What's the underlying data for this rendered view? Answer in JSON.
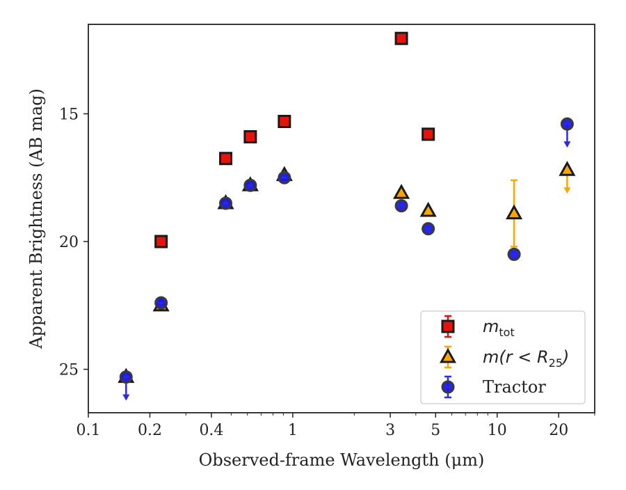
{
  "chart_data": {
    "type": "scatter",
    "xlabel": "Observed-frame Wavelength (μm)",
    "ylabel": "Apparent Brightness (AB mag)",
    "xscale": "log",
    "xlim": [
      0.1,
      30
    ],
    "ylim": [
      26.7,
      11.5
    ],
    "y_inverted": true,
    "xticks": [
      0.1,
      0.2,
      0.4,
      1,
      3,
      5,
      10,
      20
    ],
    "xtick_labels": [
      "0.1",
      "0.2",
      "0.4",
      "1",
      "3",
      "5",
      "10",
      "20"
    ],
    "yticks": [
      15,
      20,
      25
    ],
    "ytick_labels": [
      "15",
      "20",
      "25"
    ],
    "grid": false,
    "legend_placement": "lower-right",
    "legend": [
      {
        "label_main": "m",
        "label_sub": "tot",
        "label_rest": ""
      },
      {
        "label_main": "m(r < R",
        "label_sub": "25",
        "label_rest": ")"
      },
      {
        "label_main": "Tractor",
        "label_sub": "",
        "label_rest": ""
      }
    ],
    "series": [
      {
        "name": "m_tot",
        "marker": "square",
        "color": "#e8120c",
        "edge": "#1a1a1a",
        "errcolor": "#e8120c",
        "points": [
          {
            "x": 0.227,
            "y": 20.0
          },
          {
            "x": 0.47,
            "y": 16.75
          },
          {
            "x": 0.62,
            "y": 15.9
          },
          {
            "x": 0.91,
            "y": 15.3
          },
          {
            "x": 3.4,
            "y": 12.05
          },
          {
            "x": 4.6,
            "y": 15.8
          }
        ]
      },
      {
        "name": "m(r<R25)",
        "marker": "triangle",
        "color": "#ffa500",
        "edge": "#1a1a1a",
        "errcolor": "#ffa500",
        "points": [
          {
            "x": 0.153,
            "y": 25.3,
            "upper_limit": true
          },
          {
            "x": 0.227,
            "y": 22.5
          },
          {
            "x": 0.47,
            "y": 18.5
          },
          {
            "x": 0.62,
            "y": 17.8
          },
          {
            "x": 0.91,
            "y": 17.4
          },
          {
            "x": 3.4,
            "y": 18.1
          },
          {
            "x": 4.6,
            "y": 18.8
          },
          {
            "x": 12.1,
            "y": 18.9,
            "yerr": [
              1.3,
              1.3
            ]
          },
          {
            "x": 22.0,
            "y": 17.2,
            "upper_limit": true
          }
        ]
      },
      {
        "name": "Tractor",
        "marker": "circle",
        "color": "#1a1ae6",
        "edge": "#3a3a3a",
        "errcolor": "#2a2af0",
        "points": [
          {
            "x": 0.153,
            "y": 25.3,
            "upper_limit": true
          },
          {
            "x": 0.227,
            "y": 22.4
          },
          {
            "x": 0.47,
            "y": 18.5
          },
          {
            "x": 0.62,
            "y": 17.8
          },
          {
            "x": 0.91,
            "y": 17.5
          },
          {
            "x": 3.4,
            "y": 18.6
          },
          {
            "x": 4.6,
            "y": 19.5
          },
          {
            "x": 12.1,
            "y": 20.5
          },
          {
            "x": 22.0,
            "y": 15.4,
            "upper_limit": true
          }
        ]
      }
    ]
  }
}
